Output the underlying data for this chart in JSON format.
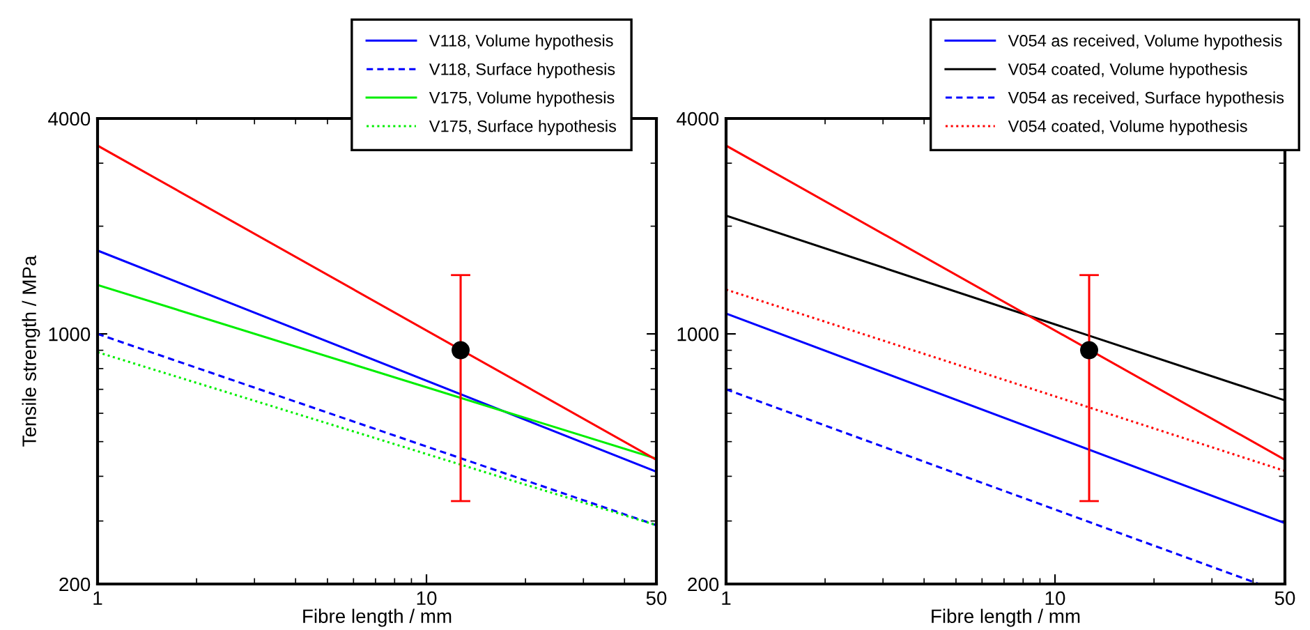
{
  "chart_data": [
    {
      "type": "line",
      "xlabel": "Fibre length / mm",
      "ylabel": "Tensile strength / MPa",
      "log": "xy",
      "xlim": [
        1,
        50
      ],
      "xticks": [
        1,
        10,
        50
      ],
      "ylim": [
        200,
        4000
      ],
      "yticks": [
        200,
        1000,
        4000
      ],
      "grid": false,
      "legend": "top right",
      "marker": "none",
      "series": [
        {
          "name": "V118, Volume hypothesis",
          "color": "#0000ff",
          "line_style": "solid",
          "x": [
            1,
            50
          ],
          "values": [
            1710,
            412
          ]
        },
        {
          "name": "V118, Surface hypothesis",
          "color": "#0000ff",
          "line_style": "dashed",
          "x": [
            1,
            50
          ],
          "values": [
            1000,
            292
          ]
        },
        {
          "name": "V175, Volume hypothesis",
          "color": "#00ee00",
          "line_style": "solid",
          "x": [
            1,
            50
          ],
          "values": [
            1370,
            448
          ]
        },
        {
          "name": "V175, Surface hypothesis",
          "color": "#00ee00",
          "line_style": "dotted",
          "x": [
            1,
            50
          ],
          "values": [
            889,
            292
          ]
        },
        {
          "color": "#ff0000",
          "line_style": "solid",
          "x": [
            1,
            50
          ],
          "values": [
            3360,
            445
          ]
        },
        {
          "type": "scatter",
          "marker": "circle",
          "color": "#000000",
          "x": [
            12.7
          ],
          "values": [
            900
          ],
          "errors": [
            [
              341,
              1460
            ]
          ]
        }
      ]
    },
    {
      "type": "line",
      "xlabel": "Fibre length / mm",
      "log": "xy",
      "xlim": [
        1,
        50
      ],
      "xticks": [
        1,
        10,
        50
      ],
      "ylim": [
        200,
        4000
      ],
      "yticks": [
        200,
        1000,
        4000
      ],
      "grid": false,
      "legend": "top right",
      "marker": "none",
      "series": [
        {
          "name": "V054 as received, Volume hypothesis",
          "color": "#0000ff",
          "line_style": "solid",
          "x": [
            1,
            50
          ],
          "values": [
            1140,
            296
          ]
        },
        {
          "name": "V054 coated, Volume hypothesis",
          "color": "#000000",
          "line_style": "solid",
          "x": [
            1,
            50
          ],
          "values": [
            2140,
            652
          ]
        },
        {
          "name": "V054 as received, Surface hypothesis",
          "color": "#0000ff",
          "line_style": "dashed",
          "x": [
            1,
            41.7
          ],
          "values": [
            700,
            200
          ]
        },
        {
          "name": "V054 coated, Volume hypothesis",
          "color": "#ff0000",
          "line_style": "dotted",
          "x": [
            1,
            50
          ],
          "values": [
            1330,
            414
          ]
        },
        {
          "color": "#ff0000",
          "line_style": "solid",
          "x": [
            1,
            50
          ],
          "values": [
            3360,
            445
          ]
        },
        {
          "type": "scatter",
          "marker": "circle",
          "color": "#000000",
          "x": [
            12.7
          ],
          "values": [
            900
          ],
          "errors": [
            [
              341,
              1460
            ]
          ]
        }
      ]
    }
  ]
}
